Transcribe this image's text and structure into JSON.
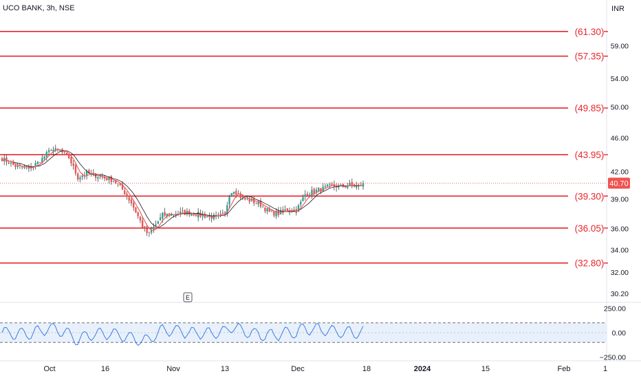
{
  "header": {
    "symbol_line": "UCO BANK, 3h, NSE",
    "currency": "INR"
  },
  "colors": {
    "level_line": "#e6262e",
    "up_candle": "#26a69a",
    "down_candle": "#ef5350",
    "wick": "#444444",
    "ma_fast": "#ef5350",
    "ma_slow": "#131722",
    "oscillator": "#3d7be3",
    "band_fill": "#e8f1fb",
    "axis_text": "#131722",
    "price_tag": "#ef5350"
  },
  "event_marker": "E",
  "chart_data": {
    "type": "candlestick",
    "price_axis": {
      "ticks": [
        "59.00",
        "54.00",
        "50.00",
        "46.00",
        "42.00",
        "39.00",
        "36.00",
        "34.00",
        "32.00",
        "30.20"
      ],
      "scale": "log",
      "range": [
        29.6,
        66.0
      ]
    },
    "time_axis": {
      "ticks": [
        "Oct",
        "16",
        "Nov",
        "13",
        "Dec",
        "18",
        "2024",
        "15",
        "Feb",
        "1"
      ]
    },
    "last_price": "40.70",
    "levels": [
      {
        "value": 61.3,
        "label": "(61.30)"
      },
      {
        "value": 57.35,
        "label": "(57.35)"
      },
      {
        "value": 49.85,
        "label": "(49.85)"
      },
      {
        "value": 43.95,
        "label": "(43.95)"
      },
      {
        "value": 39.3,
        "label": "(39.30)"
      },
      {
        "value": 36.05,
        "label": "(36.05)"
      },
      {
        "value": 32.8,
        "label": "(32.80)"
      }
    ],
    "price_path": {
      "unit": "candles (3h bars)",
      "keypoints": [
        [
          0,
          43.5
        ],
        [
          6,
          42.6
        ],
        [
          12,
          42.3
        ],
        [
          17,
          43.2
        ],
        [
          22,
          44.6
        ],
        [
          26,
          44.4
        ],
        [
          30,
          43.6
        ],
        [
          34,
          41.3
        ],
        [
          38,
          41.8
        ],
        [
          44,
          41.4
        ],
        [
          50,
          41.0
        ],
        [
          54,
          40.0
        ],
        [
          58,
          38.6
        ],
        [
          61,
          37.2
        ],
        [
          64,
          35.8
        ],
        [
          66,
          35.4
        ],
        [
          68,
          36.1
        ],
        [
          72,
          37.3
        ],
        [
          78,
          37.5
        ],
        [
          84,
          37.6
        ],
        [
          90,
          37.3
        ],
        [
          96,
          37.1
        ],
        [
          100,
          37.4
        ],
        [
          102,
          39.5
        ],
        [
          104,
          40.0
        ],
        [
          108,
          39.0
        ],
        [
          112,
          38.8
        ],
        [
          116,
          38.4
        ],
        [
          120,
          37.6
        ],
        [
          124,
          37.5
        ],
        [
          128,
          37.9
        ],
        [
          132,
          37.8
        ],
        [
          134,
          38.6
        ],
        [
          136,
          39.5
        ],
        [
          140,
          39.8
        ],
        [
          144,
          40.1
        ],
        [
          148,
          40.4
        ],
        [
          152,
          40.3
        ],
        [
          156,
          40.5
        ],
        [
          160,
          40.3
        ],
        [
          162,
          40.7
        ]
      ]
    },
    "oscillator": {
      "ticks": [
        "250.00",
        "0.00",
        "−250.00"
      ],
      "range": [
        -260,
        260
      ],
      "band": [
        -100,
        100
      ],
      "midline": 0
    }
  }
}
